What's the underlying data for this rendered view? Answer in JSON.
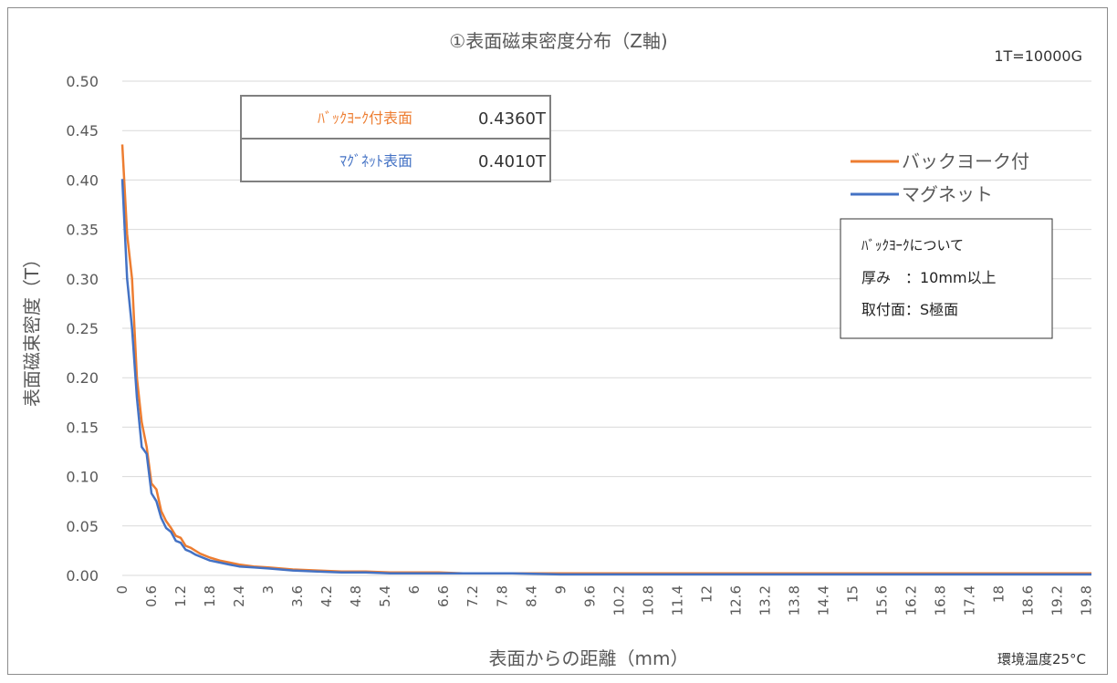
{
  "chart_data": {
    "type": "line",
    "title": "①表面磁束密度分布（Z軸)",
    "xlabel": "表面からの距離（mm）",
    "ylabel": "表面磁束密度（T）",
    "ylim": [
      0,
      0.5
    ],
    "yticks": [
      "0.00",
      "0.05",
      "0.10",
      "0.15",
      "0.20",
      "0.25",
      "0.30",
      "0.35",
      "0.40",
      "0.45",
      "0.50"
    ],
    "xticks": [
      "0",
      "0.6",
      "1.2",
      "1.8",
      "2.4",
      "3",
      "3.6",
      "4.2",
      "4.8",
      "5.4",
      "6",
      "6.6",
      "7.2",
      "7.8",
      "8.4",
      "9",
      "9.6",
      "10.2",
      "10.8",
      "11.4",
      "12",
      "12.6",
      "13.2",
      "13.8",
      "14.4",
      "15",
      "15.6",
      "16.2",
      "16.8",
      "17.4",
      "18",
      "18.6",
      "19.2",
      "19.8"
    ],
    "xlim": [
      0,
      19.9
    ],
    "grid": true,
    "legend_position": "right",
    "series": [
      {
        "name": "バックヨーク付",
        "color": "#ed7d31",
        "x": [
          0,
          0.1,
          0.2,
          0.3,
          0.4,
          0.5,
          0.6,
          0.7,
          0.8,
          0.9,
          1.0,
          1.1,
          1.2,
          1.3,
          1.4,
          1.5,
          1.6,
          1.8,
          2.0,
          2.2,
          2.4,
          2.7,
          3.0,
          3.5,
          4.0,
          4.5,
          5.0,
          5.5,
          6.0,
          6.5,
          7.0,
          8.0,
          9.0,
          10.0,
          11.0,
          12.0,
          13.0,
          14.0,
          15.0,
          16.0,
          17.0,
          18.0,
          19.0,
          19.9
        ],
        "values": [
          0.436,
          0.345,
          0.3,
          0.2,
          0.155,
          0.13,
          0.093,
          0.087,
          0.065,
          0.055,
          0.048,
          0.04,
          0.038,
          0.03,
          0.028,
          0.025,
          0.022,
          0.018,
          0.015,
          0.013,
          0.011,
          0.009,
          0.008,
          0.006,
          0.005,
          0.004,
          0.004,
          0.003,
          0.003,
          0.003,
          0.002,
          0.002,
          0.002,
          0.002,
          0.002,
          0.002,
          0.002,
          0.002,
          0.002,
          0.002,
          0.002,
          0.002,
          0.002,
          0.002
        ]
      },
      {
        "name": "マグネット",
        "color": "#4472c4",
        "x": [
          0,
          0.1,
          0.2,
          0.3,
          0.4,
          0.5,
          0.6,
          0.7,
          0.8,
          0.9,
          1.0,
          1.1,
          1.2,
          1.3,
          1.4,
          1.5,
          1.6,
          1.8,
          2.0,
          2.2,
          2.4,
          2.7,
          3.0,
          3.5,
          4.0,
          4.5,
          5.0,
          5.5,
          6.0,
          6.5,
          7.0,
          8.0,
          9.0,
          10.0,
          11.0,
          12.0,
          13.0,
          14.0,
          15.0,
          16.0,
          17.0,
          18.0,
          19.0,
          19.9
        ],
        "values": [
          0.401,
          0.3,
          0.25,
          0.18,
          0.13,
          0.123,
          0.083,
          0.075,
          0.058,
          0.048,
          0.044,
          0.035,
          0.033,
          0.026,
          0.024,
          0.021,
          0.019,
          0.015,
          0.013,
          0.011,
          0.009,
          0.008,
          0.007,
          0.005,
          0.004,
          0.003,
          0.003,
          0.002,
          0.002,
          0.002,
          0.002,
          0.002,
          0.001,
          0.001,
          0.001,
          0.001,
          0.001,
          0.001,
          0.001,
          0.001,
          0.001,
          0.001,
          0.001,
          0.001
        ]
      }
    ]
  },
  "conversion_note": "1T=10000G",
  "ambient_note": "環境温度25°C",
  "value_table": {
    "rows": [
      {
        "label": "ﾊﾞｯｸﾖｰｸ付表面",
        "value": "0.4360T",
        "color": "#ed7d31"
      },
      {
        "label": "ﾏｸﾞﾈｯﾄ表面",
        "value": "0.4010T",
        "color": "#4472c4"
      }
    ]
  },
  "backyoke_note": {
    "heading": "ﾊﾞｯｸﾖｰｸについて",
    "line1": "厚み　：10mm以上",
    "line2": "取付面：S極面"
  }
}
